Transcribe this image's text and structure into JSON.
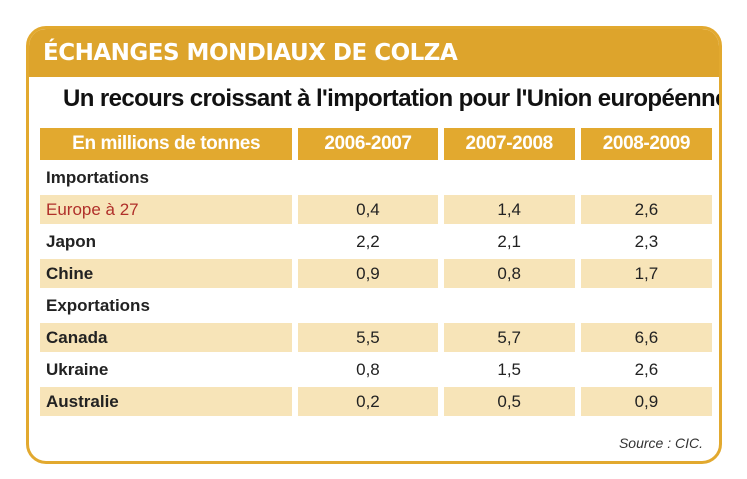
{
  "banner": "ÉCHANGES MONDIAUX DE COLZA",
  "subtitle": "Un recours croissant à l'importation pour l'Union européenne",
  "header": {
    "unit": "En millions de tonnes",
    "c1": "2006-2007",
    "c2": "2007-2008",
    "c3": "2008-2009"
  },
  "sections": {
    "imports": "Importations",
    "exports": "Exportations"
  },
  "rows": [
    {
      "label": "Europe à 27",
      "v1": "0,4",
      "v2": "1,4",
      "v3": "2,6"
    },
    {
      "label": "Japon",
      "v1": "2,2",
      "v2": "2,1",
      "v3": "2,3"
    },
    {
      "label": "Chine",
      "v1": "0,9",
      "v2": "0,8",
      "v3": "1,7"
    },
    {
      "label": "Canada",
      "v1": "5,5",
      "v2": "5,7",
      "v3": "6,6"
    },
    {
      "label": "Ukraine",
      "v1": "0,8",
      "v2": "1,5",
      "v3": "2,6"
    },
    {
      "label": "Australie",
      "v1": "0,2",
      "v2": "0,5",
      "v3": "0,9"
    }
  ],
  "source": "Source : CIC.",
  "colors": {
    "accent": "#dda42c",
    "row_shade": "#f7e4b8",
    "highlight": "#b0302a"
  },
  "chart_data": {
    "type": "table",
    "title": "ÉCHANGES MONDIAUX DE COLZA",
    "subtitle": "Un recours croissant à l'importation pour l'Union européenne",
    "unit": "En millions de tonnes",
    "columns": [
      "2006-2007",
      "2007-2008",
      "2008-2009"
    ],
    "groups": [
      {
        "name": "Importations",
        "rows": [
          {
            "label": "Europe à 27",
            "values": [
              0.4,
              1.4,
              2.6
            ]
          },
          {
            "label": "Japon",
            "values": [
              2.2,
              2.1,
              2.3
            ]
          },
          {
            "label": "Chine",
            "values": [
              0.9,
              0.8,
              1.7
            ]
          }
        ]
      },
      {
        "name": "Exportations",
        "rows": [
          {
            "label": "Canada",
            "values": [
              5.5,
              5.7,
              6.6
            ]
          },
          {
            "label": "Ukraine",
            "values": [
              0.8,
              1.5,
              2.6
            ]
          },
          {
            "label": "Australie",
            "values": [
              0.2,
              0.5,
              0.9
            ]
          }
        ]
      }
    ],
    "source": "Source : CIC."
  }
}
